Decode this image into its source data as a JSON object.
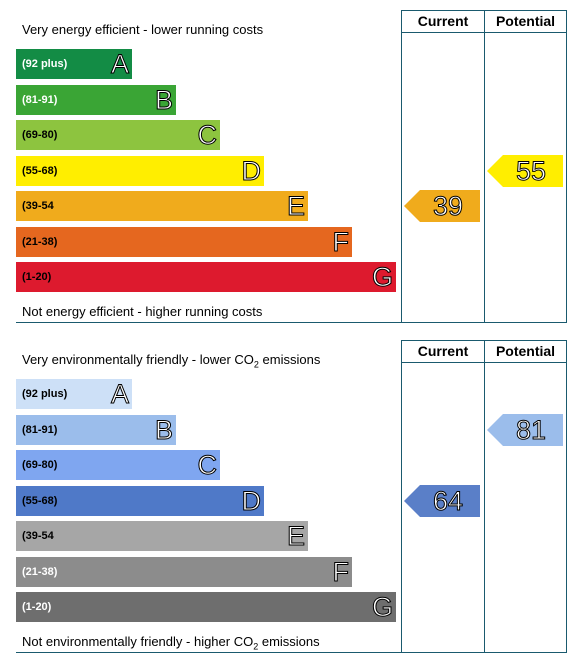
{
  "energy": {
    "top_label": "Very energy efficient - lower running costs",
    "bottom_label": "Not energy efficient - higher running costs",
    "current_label": "Current",
    "potential_label": "Potential",
    "bands": [
      {
        "range": "(92 plus)",
        "letter": "A",
        "color": "#138c45",
        "text_color": "#ffffff"
      },
      {
        "range": "(81-91)",
        "letter": "B",
        "color": "#3aa535",
        "text_color": "#ffffff"
      },
      {
        "range": "(69-80)",
        "letter": "C",
        "color": "#8dc43f",
        "text_color": "#000000"
      },
      {
        "range": "(55-68)",
        "letter": "D",
        "color": "#ffee00",
        "text_color": "#000000"
      },
      {
        "range": "(39-54",
        "letter": "E",
        "color": "#f0ab1c",
        "text_color": "#000000"
      },
      {
        "range": "(21-38)",
        "letter": "F",
        "color": "#e5671f",
        "text_color": "#000000"
      },
      {
        "range": "(1-20)",
        "letter": "G",
        "color": "#dd1a2e",
        "text_color": "#000000"
      }
    ],
    "current": {
      "value": "39",
      "band_index": 4,
      "color": "#f0ab1c"
    },
    "potential": {
      "value": "55",
      "band_index": 3,
      "color": "#ffee00"
    }
  },
  "environment": {
    "top_label_pre": "Very environmentally friendly - lower CO",
    "top_label_sub": "2",
    "top_label_post": " emissions",
    "bottom_label_pre": "Not environmentally friendly - higher CO",
    "bottom_label_sub": "2",
    "bottom_label_post": " emissions",
    "current_label": "Current",
    "potential_label": "Potential",
    "bands": [
      {
        "range": "(92 plus)",
        "letter": "A",
        "color": "#cde0f7",
        "text_color": "#000000"
      },
      {
        "range": "(81-91)",
        "letter": "B",
        "color": "#9bbdeb",
        "text_color": "#000000"
      },
      {
        "range": "(69-80)",
        "letter": "C",
        "color": "#7fa6f0",
        "text_color": "#000000"
      },
      {
        "range": "(55-68)",
        "letter": "D",
        "color": "#4f79c8",
        "text_color": "#000000"
      },
      {
        "range": "(39-54",
        "letter": "E",
        "color": "#a6a6a6",
        "text_color": "#000000"
      },
      {
        "range": "(21-38)",
        "letter": "F",
        "color": "#8c8c8c",
        "text_color": "#ffffff"
      },
      {
        "range": "(1-20)",
        "letter": "G",
        "color": "#6e6e6e",
        "text_color": "#ffffff"
      }
    ],
    "current": {
      "value": "64",
      "band_index": 3,
      "color": "#5a7fc8"
    },
    "potential": {
      "value": "81",
      "band_index": 1,
      "color": "#9bbdeb"
    }
  }
}
